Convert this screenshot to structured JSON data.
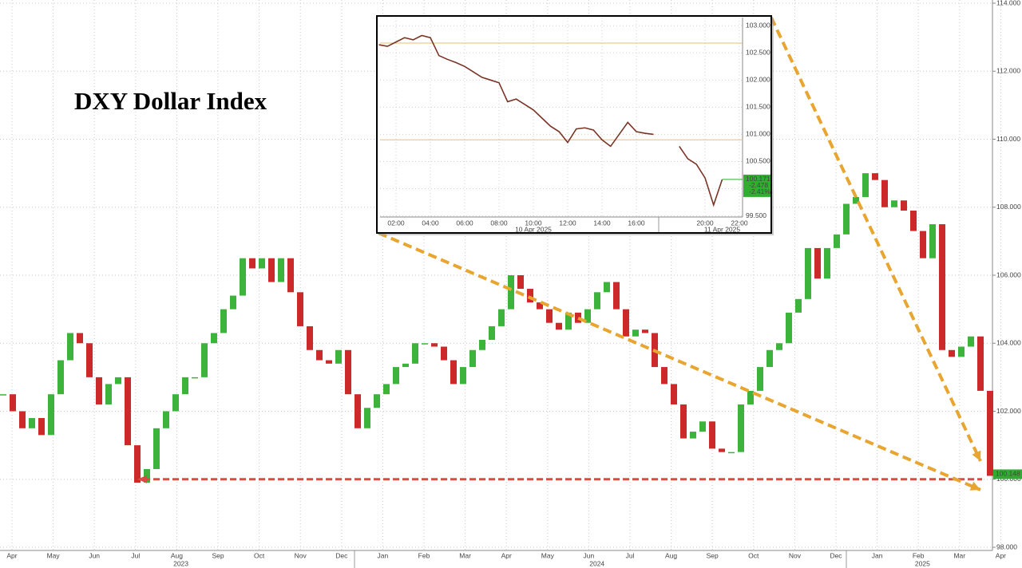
{
  "chart_data": [
    {
      "type": "candlestick",
      "title": "DXY Dollar Index",
      "month_labels": [
        "Apr",
        "May",
        "Jun",
        "Jul",
        "Aug",
        "Sep",
        "Oct",
        "Nov",
        "Dec",
        "Jan",
        "Feb",
        "Mar",
        "Apr",
        "May",
        "Jun",
        "Jul",
        "Aug",
        "Sep",
        "Oct",
        "Nov",
        "Dec",
        "Jan",
        "Feb",
        "Mar",
        "Apr"
      ],
      "year_labels": [
        "2023",
        "2024",
        "2025"
      ],
      "series": [
        {
          "values": [
            102.5,
            102.0,
            101.5,
            101.8,
            101.3,
            102.5,
            103.5,
            104.3,
            104.0,
            103.0,
            102.2,
            102.8,
            103.0,
            101.0,
            99.9,
            100.3,
            101.5,
            102.0,
            102.5,
            103.0,
            103.0,
            104.0,
            104.3,
            105.0,
            105.4,
            106.5,
            106.2,
            106.5,
            105.8,
            106.5,
            105.5,
            104.5,
            103.8,
            103.5,
            103.4,
            103.8,
            102.5,
            101.5,
            102.1,
            102.5,
            102.8,
            103.3,
            103.4,
            104.0,
            104.0,
            103.9,
            103.5,
            102.8,
            103.3,
            103.8,
            104.1,
            104.5,
            105.0,
            106.0,
            105.6,
            105.2,
            105.0,
            104.6,
            104.4,
            104.9,
            104.6,
            105.0,
            105.5,
            105.8,
            105.0,
            104.2,
            104.4,
            104.3,
            103.3,
            102.8,
            102.2,
            101.2,
            101.4,
            101.7,
            100.9,
            100.8,
            100.8,
            102.2,
            102.6,
            103.3,
            103.8,
            104.0,
            104.9,
            105.3,
            106.8,
            105.9,
            106.8,
            107.2,
            108.1,
            108.3,
            109.0,
            108.8,
            108.0,
            108.2,
            107.9,
            107.3,
            106.5,
            107.5,
            103.8,
            103.6,
            103.9,
            104.2,
            102.6,
            100.1
          ]
        }
      ],
      "up_color": "#3cb43c",
      "down_color": "#cc2a2a",
      "ylim": [
        98,
        114
      ],
      "yticks": [
        {
          "value": 98,
          "label": "98.000"
        },
        {
          "value": 100,
          "label": "100.000"
        },
        {
          "value": 102,
          "label": "102.000"
        },
        {
          "value": 104,
          "label": "104.000"
        },
        {
          "value": 106,
          "label": "106.000"
        },
        {
          "value": 108,
          "label": "108.000"
        },
        {
          "value": 110,
          "label": "110.000"
        },
        {
          "value": 112,
          "label": "112.000"
        },
        {
          "value": 114,
          "label": "114.000"
        }
      ],
      "grid": true,
      "support_level": 100,
      "support_color": "#e04848",
      "last_value": 100.148,
      "last_color": "#33aa33"
    },
    {
      "type": "line",
      "categories": [
        null,
        null,
        "02:00",
        null,
        null,
        null,
        "04:00",
        null,
        null,
        null,
        "06:00",
        null,
        null,
        null,
        "08:00",
        null,
        null,
        null,
        "10:00",
        null,
        null,
        null,
        "12:00",
        null,
        null,
        null,
        "14:00",
        null,
        null,
        null,
        "16:00",
        null,
        null,
        null,
        null,
        null,
        null,
        null,
        "20:00",
        null,
        null,
        null,
        "22:00",
        null,
        null
      ],
      "date_labels": [
        "10 Apr 2025",
        "11 Apr 2025"
      ],
      "series": [
        {
          "color": "#7a3426",
          "values": [
            102.65,
            102.62,
            102.7,
            102.78,
            102.74,
            102.82,
            102.78,
            102.45,
            102.38,
            102.32,
            102.25,
            102.15,
            102.05,
            102.0,
            101.95,
            101.6,
            101.65,
            101.55,
            101.45,
            101.3,
            101.15,
            101.05,
            100.85,
            101.1,
            101.12,
            101.08,
            100.9,
            100.78,
            101.0,
            101.22,
            101.05,
            101.02,
            101.0,
            null,
            null,
            100.78,
            100.55,
            100.45,
            100.2,
            99.7,
            100.17,
            null,
            null,
            null,
            null
          ]
        }
      ],
      "ylim": [
        99.45,
        103.15
      ],
      "yticks": [
        {
          "value": 99.5,
          "label": "99.500"
        },
        {
          "value": 100,
          "label": "100.000"
        },
        {
          "value": 100.5,
          "label": "100.500"
        },
        {
          "value": 101,
          "label": "101.000"
        },
        {
          "value": 101.5,
          "label": "101.500"
        },
        {
          "value": 102,
          "label": "102.000"
        },
        {
          "value": 102.5,
          "label": "102.500"
        },
        {
          "value": 103,
          "label": "103.000"
        }
      ],
      "reference_lines": [
        102.68,
        100.9
      ],
      "reference_color": "#e8c070",
      "last_value": 100.171,
      "net_change": -2.478,
      "pct_change": {
        "value": -2.41,
        "label": "-2.41%"
      },
      "last_color": "#2fae2f"
    }
  ]
}
